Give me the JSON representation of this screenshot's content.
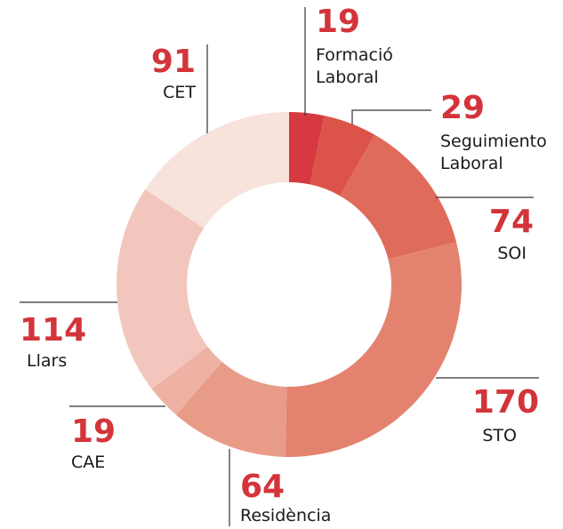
{
  "chart_data": {
    "type": "donut",
    "categories": [
      "Formació Laboral",
      "Seguimiento Laboral",
      "SOI",
      "STO",
      "Residència",
      "CAE",
      "Llars",
      "CET"
    ],
    "values": [
      19,
      29,
      74,
      170,
      64,
      19,
      114,
      91
    ],
    "colors": [
      "#d63a40",
      "#dc5349",
      "#df6b5b",
      "#e3836f",
      "#e89c88",
      "#eeb2a4",
      "#f2c6bc",
      "#f8e2dc"
    ]
  }
}
